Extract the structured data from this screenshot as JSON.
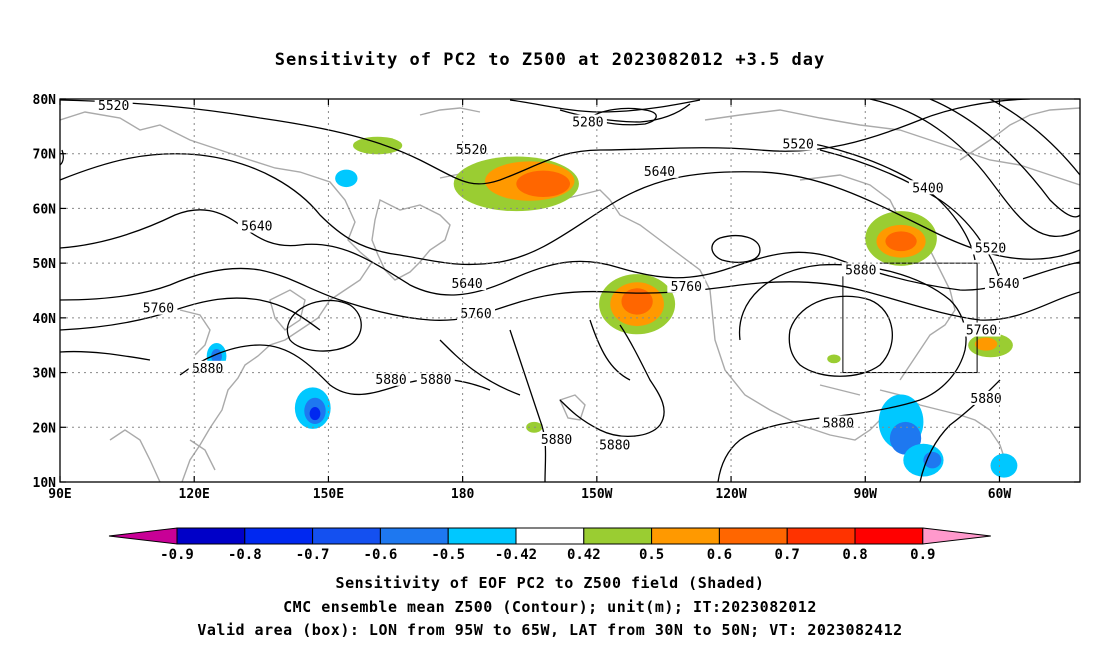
{
  "title": "Sensitivity of PC2 to Z500 at 2023082012 +3.5 day",
  "map": {
    "lon_range": [
      90,
      318
    ],
    "lat_range": [
      10,
      80
    ],
    "lat_ticks": [
      {
        "lat": 80,
        "label": "80N"
      },
      {
        "lat": 70,
        "label": "70N"
      },
      {
        "lat": 60,
        "label": "60N"
      },
      {
        "lat": 50,
        "label": "50N"
      },
      {
        "lat": 40,
        "label": "40N"
      },
      {
        "lat": 30,
        "label": "30N"
      },
      {
        "lat": 20,
        "label": "20N"
      },
      {
        "lat": 10,
        "label": "10N"
      }
    ],
    "lon_ticks": [
      {
        "lon": 90,
        "label": "90E"
      },
      {
        "lon": 120,
        "label": "120E"
      },
      {
        "lon": 150,
        "label": "150E"
      },
      {
        "lon": 180,
        "label": "180"
      },
      {
        "lon": 210,
        "label": "150W"
      },
      {
        "lon": 240,
        "label": "120W"
      },
      {
        "lon": 270,
        "label": "90W"
      },
      {
        "lon": 300,
        "label": "60W"
      }
    ],
    "grid_lons": [
      90,
      120,
      150,
      180,
      210,
      240,
      270,
      300
    ],
    "grid_lats": [
      20,
      30,
      40,
      50,
      60,
      70
    ],
    "valid_box": {
      "lon": [
        265,
        295
      ],
      "lat": [
        30,
        50
      ]
    },
    "contour_labels": [
      {
        "text": "5520",
        "lon": 102,
        "lat": 78.5
      },
      {
        "text": "5280",
        "lon": 208,
        "lat": 75.5
      },
      {
        "text": "5520",
        "lon": 182,
        "lat": 70.5
      },
      {
        "text": "5520",
        "lon": 255,
        "lat": 71.5
      },
      {
        "text": "5640",
        "lon": 224,
        "lat": 66.5
      },
      {
        "text": "5400",
        "lon": 284,
        "lat": 63.5
      },
      {
        "text": "5640",
        "lon": 134,
        "lat": 56.5
      },
      {
        "text": "5520",
        "lon": 298,
        "lat": 52.5
      },
      {
        "text": "5880",
        "lon": 269,
        "lat": 48.5
      },
      {
        "text": "5640",
        "lon": 181,
        "lat": 46.0
      },
      {
        "text": "5760",
        "lon": 230,
        "lat": 45.5
      },
      {
        "text": "5640",
        "lon": 301,
        "lat": 46.0
      },
      {
        "text": "5760",
        "lon": 112,
        "lat": 41.5
      },
      {
        "text": "5760",
        "lon": 183,
        "lat": 40.5
      },
      {
        "text": "5760",
        "lon": 296,
        "lat": 37.5
      },
      {
        "text": "5880",
        "lon": 123,
        "lat": 30.5
      },
      {
        "text": "5880",
        "lon": 164,
        "lat": 28.5
      },
      {
        "text": "5880",
        "lon": 174,
        "lat": 28.5
      },
      {
        "text": "5880",
        "lon": 297,
        "lat": 25.0
      },
      {
        "text": "5880",
        "lon": 264,
        "lat": 20.5
      },
      {
        "text": "5880",
        "lon": 201,
        "lat": 17.5
      },
      {
        "text": "5880",
        "lon": 214,
        "lat": 16.5
      }
    ],
    "positive_regions": [
      {
        "lon": 161,
        "lat": 71.5,
        "rx": 5.5,
        "ry": 1.6,
        "value": 0.5
      },
      {
        "lon": 192,
        "lat": 64.5,
        "rx": 14,
        "ry": 5,
        "value": 0.5
      },
      {
        "lon": 195,
        "lat": 65,
        "rx": 10,
        "ry": 3.6,
        "value": 0.6
      },
      {
        "lon": 198,
        "lat": 64.5,
        "rx": 6,
        "ry": 2.4,
        "value": 0.7
      },
      {
        "lon": 219,
        "lat": 42.5,
        "rx": 8.5,
        "ry": 5.5,
        "value": 0.5
      },
      {
        "lon": 219,
        "lat": 42.5,
        "rx": 6,
        "ry": 4,
        "value": 0.6
      },
      {
        "lon": 219,
        "lat": 43,
        "rx": 3.5,
        "ry": 2.4,
        "value": 0.7
      },
      {
        "lon": 278,
        "lat": 54.5,
        "rx": 8,
        "ry": 5,
        "value": 0.5
      },
      {
        "lon": 278,
        "lat": 54,
        "rx": 5.5,
        "ry": 3,
        "value": 0.6
      },
      {
        "lon": 278,
        "lat": 54,
        "rx": 3.5,
        "ry": 1.8,
        "value": 0.7
      },
      {
        "lon": 298,
        "lat": 35,
        "rx": 5,
        "ry": 2.2,
        "value": 0.5
      },
      {
        "lon": 297,
        "lat": 35.2,
        "rx": 2.5,
        "ry": 1.2,
        "value": 0.6
      },
      {
        "lon": 196,
        "lat": 20,
        "rx": 1.8,
        "ry": 1.0,
        "value": 0.5
      },
      {
        "lon": 263,
        "lat": 32.5,
        "rx": 1.5,
        "ry": 0.8,
        "value": 0.5
      }
    ],
    "negative_regions": [
      {
        "lon": 125,
        "lat": 33,
        "rx": 2.2,
        "ry": 2.4,
        "value": -0.5
      },
      {
        "lon": 125,
        "lat": 33,
        "rx": 1.2,
        "ry": 1.3,
        "value": -0.6
      },
      {
        "lon": 146.5,
        "lat": 23.5,
        "rx": 4,
        "ry": 3.8,
        "value": -0.5
      },
      {
        "lon": 147,
        "lat": 23,
        "rx": 2.4,
        "ry": 2.4,
        "value": -0.6
      },
      {
        "lon": 147,
        "lat": 22.5,
        "rx": 1.2,
        "ry": 1.2,
        "value": -0.7
      },
      {
        "lon": 154,
        "lat": 65.5,
        "rx": 2.5,
        "ry": 1.6,
        "value": -0.5
      },
      {
        "lon": 278,
        "lat": 21,
        "rx": 5,
        "ry": 5,
        "value": -0.5
      },
      {
        "lon": 279,
        "lat": 18,
        "rx": 3.5,
        "ry": 3,
        "value": -0.6
      },
      {
        "lon": 283,
        "lat": 14,
        "rx": 4.5,
        "ry": 3,
        "value": -0.5
      },
      {
        "lon": 285,
        "lat": 14,
        "rx": 2,
        "ry": 1.5,
        "value": -0.6
      },
      {
        "lon": 301,
        "lat": 13,
        "rx": 3,
        "ry": 2.2,
        "value": -0.5
      }
    ]
  },
  "colorbar": {
    "levels": [
      "-0.9",
      "-0.8",
      "-0.7",
      "-0.6",
      "-0.5",
      "-0.42",
      "0.42",
      "0.5",
      "0.6",
      "0.7",
      "0.8",
      "0.9"
    ],
    "colors": [
      "#c80096",
      "#0000c8",
      "#0028f0",
      "#1450f0",
      "#1e78f0",
      "#00c8ff",
      "#ffffff",
      "#9acd32",
      "#ff9900",
      "#ff6600",
      "#ff3300",
      "#ff0000",
      "#ff99cc"
    ],
    "positive_fill": {
      "0.5": "#9acd32",
      "0.6": "#ff9900",
      "0.7": "#ff6600",
      "0.8": "#ff3300"
    },
    "negative_fill": {
      "-0.5": "#00c8ff",
      "-0.6": "#1e78f0",
      "-0.7": "#0028f0"
    }
  },
  "captions": {
    "line1": "Sensitivity of EOF PC2 to Z500 field (Shaded)",
    "line2": "CMC ensemble mean Z500 (Contour); unit(m); IT:2023082012",
    "line3": "Valid area (box): LON from 95W to 65W, LAT from 30N to 50N; VT: 2023082412"
  }
}
